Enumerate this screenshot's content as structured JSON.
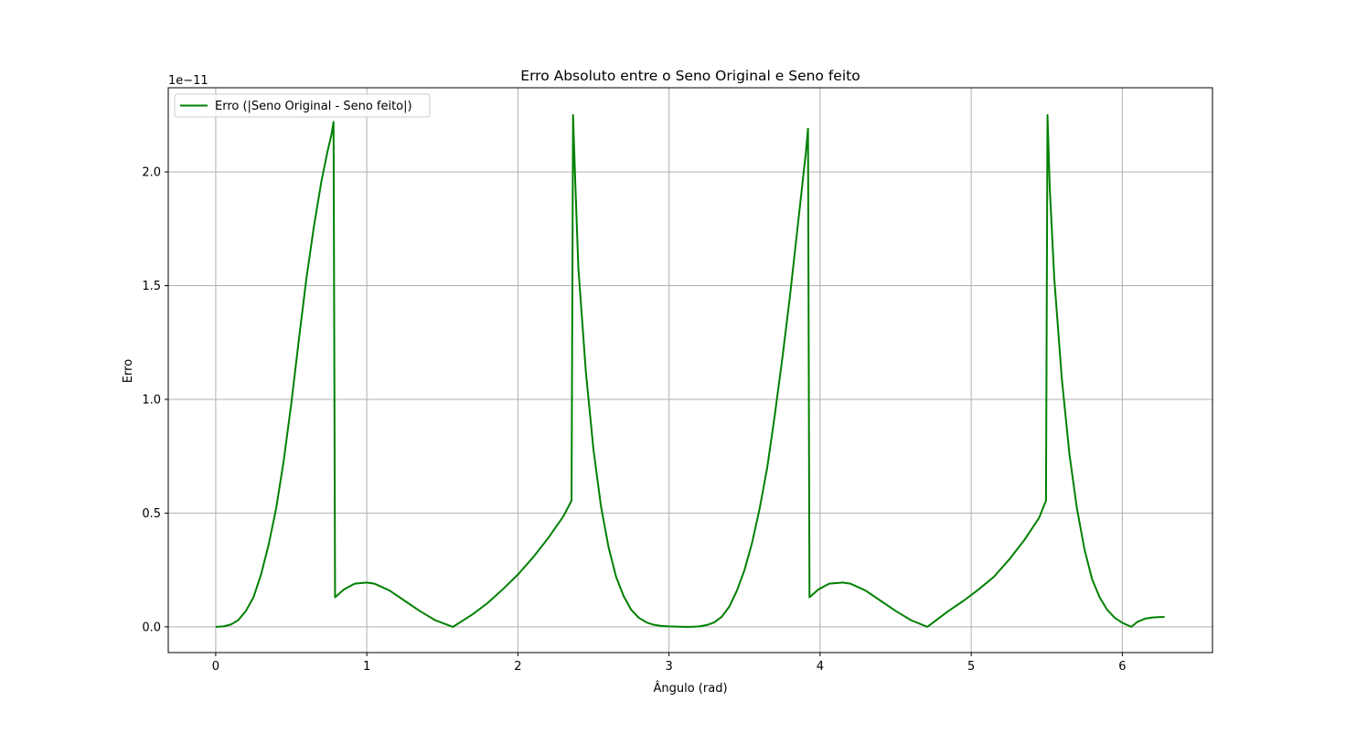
{
  "chart_data": {
    "type": "line",
    "title": "Erro Absoluto entre o Seno Original e Seno feito",
    "xlabel": "Ângulo (rad)",
    "ylabel": "Erro",
    "offset_text": "1e−11",
    "xlim": [
      -0.314,
      6.597
    ],
    "ylim": [
      -1.13e-12,
      2.37e-11
    ],
    "x_ticks": [
      0,
      1,
      2,
      3,
      4,
      5,
      6
    ],
    "y_ticks": [
      0.0,
      5e-12,
      1e-11,
      1.5e-11,
      2e-11
    ],
    "x_tick_labels": [
      "0",
      "1",
      "2",
      "3",
      "4",
      "5",
      "6"
    ],
    "y_tick_labels": [
      "0.0",
      "0.5",
      "1.0",
      "1.5",
      "2.0"
    ],
    "grid": true,
    "legend_position": "upper-left",
    "series": [
      {
        "name": "Erro (|Seno Original - Seno feito|)",
        "color": "#008000",
        "x": [
          0,
          0.05,
          0.1,
          0.15,
          0.2,
          0.25,
          0.3,
          0.35,
          0.4,
          0.45,
          0.5,
          0.55,
          0.6,
          0.65,
          0.7,
          0.74,
          0.765,
          0.78,
          0.79,
          0.85,
          0.92,
          1.0,
          1.05,
          1.15,
          1.25,
          1.35,
          1.45,
          1.57,
          1.7,
          1.8,
          1.9,
          2.0,
          2.1,
          2.2,
          2.3,
          2.355,
          2.365,
          2.38,
          2.4,
          2.45,
          2.5,
          2.55,
          2.6,
          2.65,
          2.7,
          2.75,
          2.8,
          2.85,
          2.9,
          2.95,
          3.0,
          3.05,
          3.1,
          3.14,
          3.2,
          3.25,
          3.3,
          3.35,
          3.4,
          3.45,
          3.5,
          3.55,
          3.6,
          3.65,
          3.7,
          3.75,
          3.8,
          3.85,
          3.88,
          3.905,
          3.92,
          3.93,
          3.99,
          4.06,
          4.15,
          4.2,
          4.3,
          4.4,
          4.5,
          4.6,
          4.71,
          4.85,
          4.95,
          5.05,
          5.15,
          5.25,
          5.35,
          5.45,
          5.495,
          5.505,
          5.52,
          5.55,
          5.6,
          5.65,
          5.7,
          5.75,
          5.8,
          5.85,
          5.9,
          5.95,
          6.0,
          6.06,
          6.1,
          6.15,
          6.2,
          6.25,
          6.28
        ],
        "y": [
          0,
          2e-14,
          1e-13,
          3e-13,
          7e-13,
          1.3e-12,
          2.3e-12,
          3.6e-12,
          5.2e-12,
          7.3e-12,
          9.8e-12,
          1.26e-11,
          1.53e-11,
          1.76e-11,
          1.96e-11,
          2.09e-11,
          2.16e-11,
          2.22e-11,
          1.3e-12,
          1.65e-12,
          1.9e-12,
          1.95e-12,
          1.9e-12,
          1.6e-12,
          1.15e-12,
          7e-13,
          3e-13,
          0,
          5.5e-13,
          1.05e-12,
          1.65e-12,
          2.3e-12,
          3.05e-12,
          3.9e-12,
          4.85e-12,
          5.55e-12,
          2.25e-11,
          1.95e-11,
          1.58e-11,
          1.12e-11,
          7.8e-12,
          5.3e-12,
          3.5e-12,
          2.2e-12,
          1.35e-12,
          7.5e-13,
          4e-13,
          2e-13,
          9e-14,
          4e-14,
          2e-14,
          1e-14,
          0,
          0,
          2e-14,
          8e-14,
          2e-13,
          4.5e-13,
          9e-13,
          1.6e-12,
          2.5e-12,
          3.7e-12,
          5.2e-12,
          7e-12,
          9.3e-12,
          1.18e-11,
          1.45e-11,
          1.75e-11,
          1.93e-11,
          2.08e-11,
          2.19e-11,
          1.3e-12,
          1.65e-12,
          1.9e-12,
          1.95e-12,
          1.9e-12,
          1.6e-12,
          1.15e-12,
          7e-13,
          3e-13,
          0,
          7e-13,
          1.15e-12,
          1.65e-12,
          2.2e-12,
          2.95e-12,
          3.8e-12,
          4.8e-12,
          5.55e-12,
          2.25e-11,
          1.93e-11,
          1.53e-11,
          1.09e-11,
          7.6e-12,
          5.2e-12,
          3.4e-12,
          2.1e-12,
          1.3e-12,
          7.5e-13,
          4e-13,
          1.8e-13,
          0,
          2.2e-13,
          3.6e-13,
          4.1e-13,
          4.3e-13,
          4.3e-13
        ]
      }
    ]
  }
}
